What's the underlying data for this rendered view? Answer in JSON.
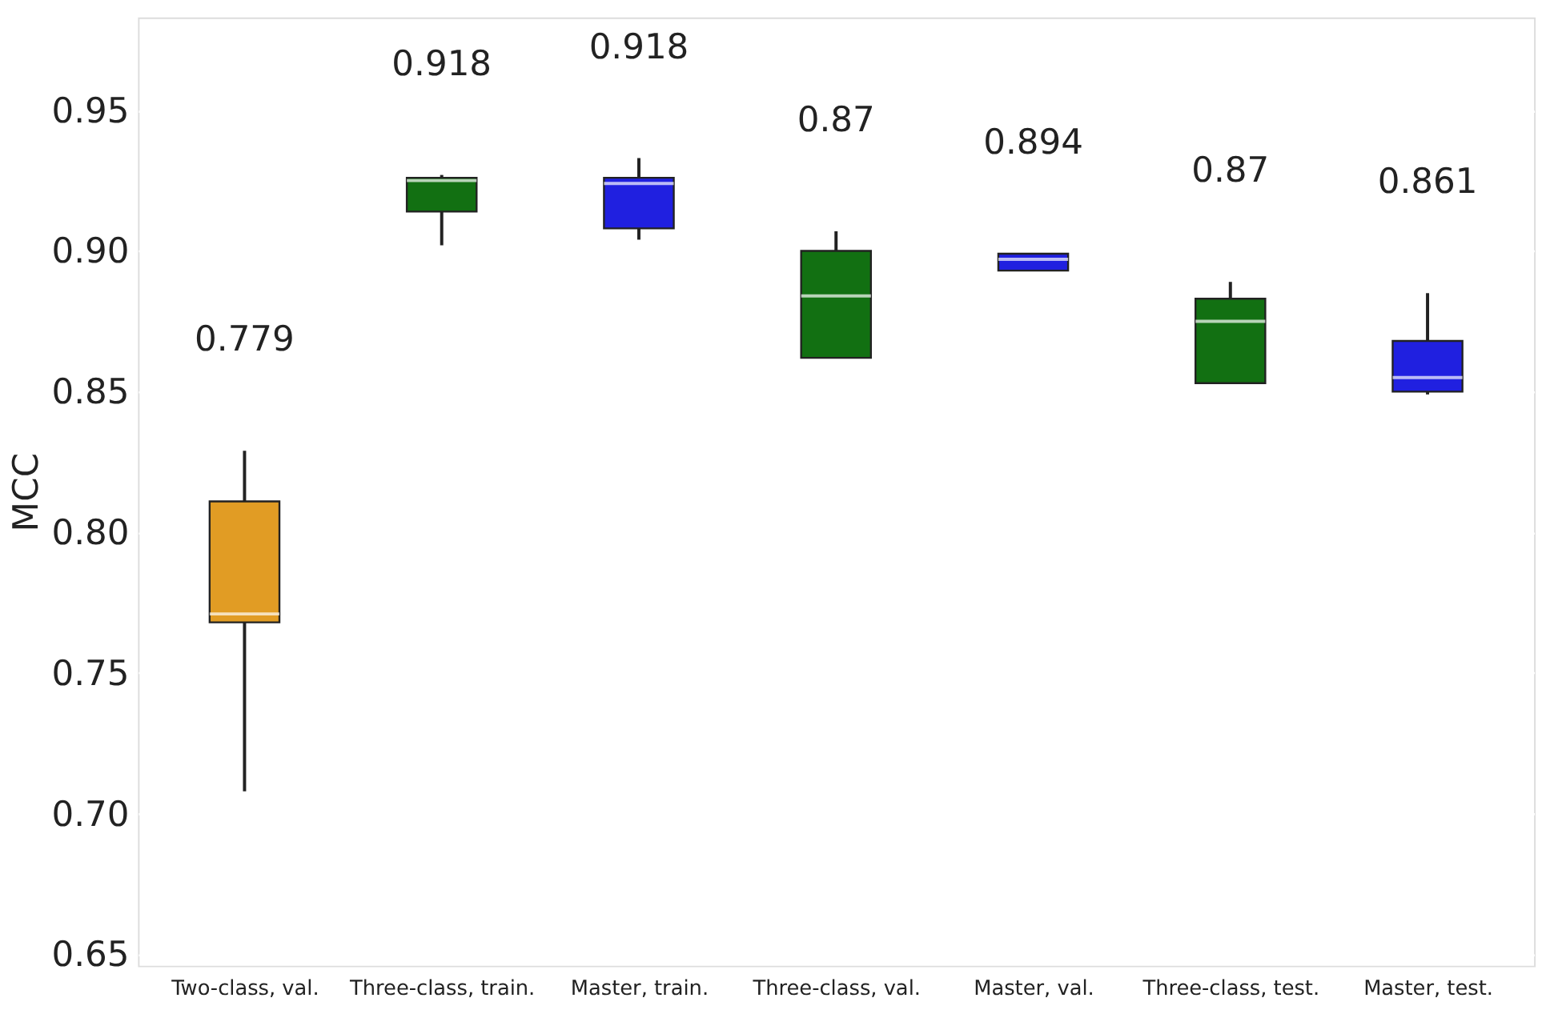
{
  "chart_data": {
    "type": "box",
    "ylabel": "MCC",
    "categories": [
      "Two-class, val.",
      "Three-class, train.",
      "Master, train.",
      "Three-class, val.",
      "Master, val.",
      "Three-class, test.",
      "Master, test."
    ],
    "boxes": [
      {
        "low": 0.708,
        "q1": 0.768,
        "median": 0.771,
        "q3": 0.811,
        "high": 0.829
      },
      {
        "low": 0.902,
        "q1": 0.914,
        "median": 0.925,
        "q3": 0.926,
        "high": 0.927
      },
      {
        "low": 0.904,
        "q1": 0.908,
        "median": 0.924,
        "q3": 0.926,
        "high": 0.933
      },
      {
        "low": 0.862,
        "q1": 0.862,
        "median": 0.884,
        "q3": 0.9,
        "high": 0.907
      },
      {
        "low": 0.893,
        "q1": 0.893,
        "median": 0.897,
        "q3": 0.899,
        "high": 0.899
      },
      {
        "low": 0.853,
        "q1": 0.853,
        "median": 0.875,
        "q3": 0.883,
        "high": 0.889
      },
      {
        "low": 0.849,
        "q1": 0.85,
        "median": 0.855,
        "q3": 0.868,
        "high": 0.885
      }
    ],
    "colors": [
      "#e19c24",
      "#127012",
      "#2020e0",
      "#127012",
      "#2020e0",
      "#127012",
      "#2020e0"
    ],
    "annotations": [
      "0.779",
      "0.918",
      "0.918",
      "0.87",
      "0.894",
      "0.87",
      "0.861"
    ],
    "ylim": [
      0.646,
      0.983
    ],
    "yticks": [
      {
        "value": 0.65,
        "label": "0.65"
      },
      {
        "value": 0.7,
        "label": "0.70"
      },
      {
        "value": 0.75,
        "label": "0.75"
      },
      {
        "value": 0.8,
        "label": "0.80"
      },
      {
        "value": 0.85,
        "label": "0.85"
      },
      {
        "value": 0.9,
        "label": "0.90"
      },
      {
        "value": 0.95,
        "label": "0.95"
      }
    ],
    "grid": "y"
  }
}
